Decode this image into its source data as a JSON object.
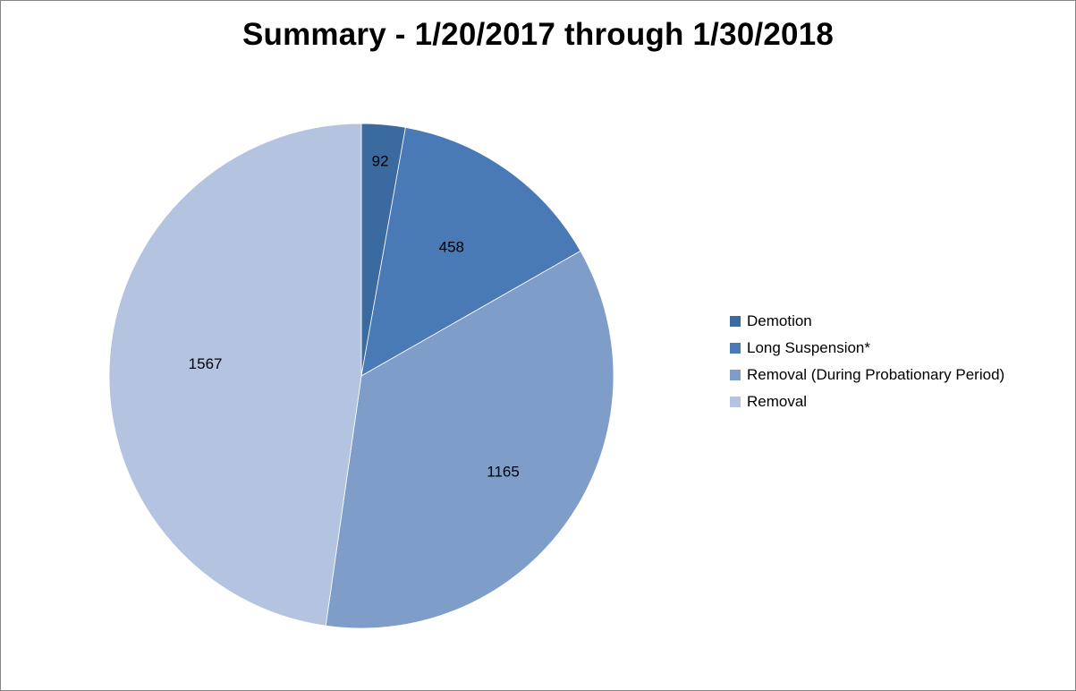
{
  "chart_data": {
    "type": "pie",
    "title": "Summary - 1/20/2017 through 1/30/2018",
    "categories": [
      "Demotion",
      "Long Suspension*",
      "Removal (During Probationary Period)",
      "Removal"
    ],
    "values": [
      92,
      458,
      1165,
      1567
    ],
    "colors": [
      "#3b6aa0",
      "#4a7ab5",
      "#7f9dc9",
      "#b4c3df"
    ],
    "legend_position": "right",
    "data_labels": true
  }
}
